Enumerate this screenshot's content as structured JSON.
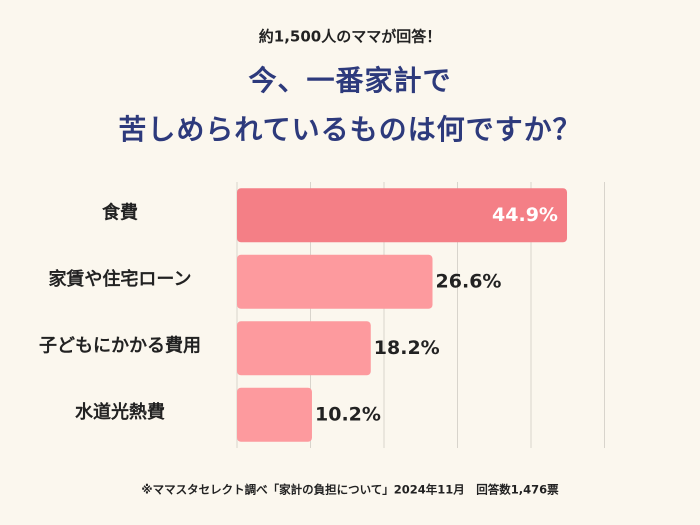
{
  "chart_data": {
    "type": "hbar",
    "subtitle": "約1,500人のママが回答！",
    "title": [
      "今、一番家計で",
      "苦しめられているものは何ですか？"
    ],
    "categories": [
      "食費",
      "家賃や住宅ローン",
      "子どもにかかる費用",
      "水道光熱費"
    ],
    "values": [
      44.9,
      26.6,
      18.2,
      10.2
    ],
    "value_labels": [
      "44.9%",
      "26.6%",
      "18.2%",
      "10.2%"
    ],
    "colors": [
      "#f47f86",
      "#fd9a9e",
      "#fd9a9e",
      "#fd9a9e"
    ],
    "xlim": [
      0,
      50
    ],
    "xticks": [
      0,
      10,
      20,
      30,
      40,
      50
    ],
    "grid": true,
    "note": "※ママスタセレクト調べ「家計の負担について」2024年11月　回答数1,476票"
  }
}
